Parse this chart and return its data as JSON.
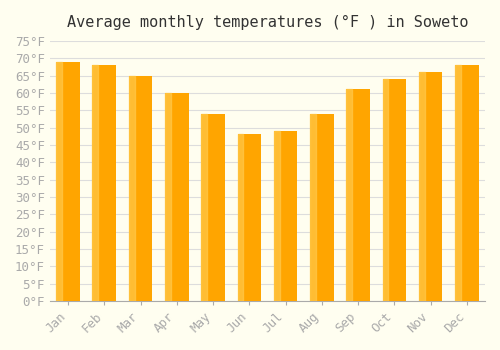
{
  "title": "Average monthly temperatures (°F ) in Soweto",
  "months": [
    "Jan",
    "Feb",
    "Mar",
    "Apr",
    "May",
    "Jun",
    "Jul",
    "Aug",
    "Sep",
    "Oct",
    "Nov",
    "Dec"
  ],
  "values": [
    69,
    68,
    65,
    60,
    54,
    48,
    49,
    54,
    61,
    64,
    66,
    68
  ],
  "bar_color_main": "#FFA500",
  "bar_color_edge": "#FFB733",
  "bar_color_gradient_top": "#FFC84A",
  "ylim": [
    0,
    75
  ],
  "ytick_step": 5,
  "background_color": "#FFFEF0",
  "grid_color": "#DDDDDD",
  "title_fontsize": 11,
  "tick_fontsize": 9,
  "tick_label_color": "#AAAAAA",
  "title_color": "#333333"
}
